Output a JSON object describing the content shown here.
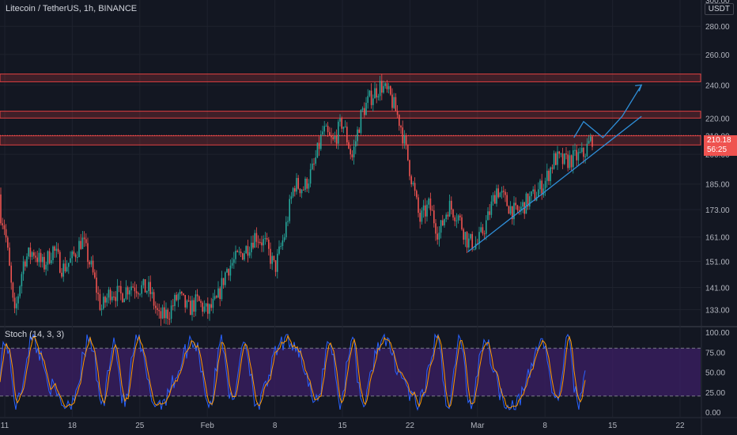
{
  "header": {
    "title": "Litecoin / TetherUS, 1h, BINANCE",
    "currency": "USDT"
  },
  "price_axis": {
    "labels": [
      "300.00",
      "280.00",
      "260.00",
      "240.00",
      "220.00",
      "210.00",
      "200.00",
      "185.00",
      "173.00",
      "161.00",
      "151.00",
      "141.00",
      "133.00"
    ]
  },
  "current_price": {
    "price": "210.18",
    "countdown": "56:25"
  },
  "stoch": {
    "label": "Stoch (14, 3, 3)",
    "labels": [
      "100.00",
      "75.00",
      "50.00",
      "25.00",
      "0.00"
    ],
    "upper_band": 80,
    "lower_band": 20
  },
  "time_axis": {
    "labels": [
      "11",
      "18",
      "25",
      "Feb",
      "8",
      "15",
      "22",
      "Mar",
      "8",
      "15",
      "22"
    ]
  },
  "colors": {
    "background": "#131722",
    "up": "#26a69a",
    "down": "#ef5350",
    "resistance": "#e04040",
    "trendline": "#2f8fd9",
    "stoch_k": "#2962ff",
    "stoch_d": "#ff9800",
    "stoch_band_fill": "#3c1f66"
  },
  "chart_data": {
    "type": "candlestick",
    "symbol": "Litecoin / TetherUS",
    "interval": "1h",
    "exchange": "BINANCE",
    "y_scale": "log",
    "ylim": [
      128,
      300
    ],
    "path": [
      [
        "2021-01-10",
        180
      ],
      [
        "2021-01-11",
        165
      ],
      [
        "2021-01-12",
        130
      ],
      [
        "2021-01-13",
        152
      ],
      [
        "2021-01-14",
        155
      ],
      [
        "2021-01-15",
        149
      ],
      [
        "2021-01-16",
        156
      ],
      [
        "2021-01-17",
        148
      ],
      [
        "2021-01-18",
        152
      ],
      [
        "2021-01-19",
        160
      ],
      [
        "2021-01-20",
        148
      ],
      [
        "2021-01-21",
        133
      ],
      [
        "2021-01-22",
        140
      ],
      [
        "2021-01-23",
        138
      ],
      [
        "2021-01-24",
        142
      ],
      [
        "2021-01-26",
        140
      ],
      [
        "2021-01-27",
        130
      ],
      [
        "2021-01-28",
        132
      ],
      [
        "2021-01-29",
        138
      ],
      [
        "2021-01-30",
        133
      ],
      [
        "2021-01-31",
        136
      ],
      [
        "2021-02-01",
        132
      ],
      [
        "2021-02-02",
        136
      ],
      [
        "2021-02-03",
        148
      ],
      [
        "2021-02-04",
        152
      ],
      [
        "2021-02-05",
        156
      ],
      [
        "2021-02-06",
        162
      ],
      [
        "2021-02-07",
        158
      ],
      [
        "2021-02-08",
        148
      ],
      [
        "2021-02-09",
        162
      ],
      [
        "2021-02-10",
        185
      ],
      [
        "2021-02-11",
        183
      ],
      [
        "2021-02-12",
        193
      ],
      [
        "2021-02-13",
        213
      ],
      [
        "2021-02-14",
        206
      ],
      [
        "2021-02-15",
        218
      ],
      [
        "2021-02-16",
        198
      ],
      [
        "2021-02-17",
        223
      ],
      [
        "2021-02-18",
        233
      ],
      [
        "2021-02-19",
        240
      ],
      [
        "2021-02-20",
        232
      ],
      [
        "2021-02-21",
        217
      ],
      [
        "2021-02-22",
        192
      ],
      [
        "2021-02-23",
        168
      ],
      [
        "2021-02-24",
        175
      ],
      [
        "2021-02-25",
        162
      ],
      [
        "2021-02-26",
        175
      ],
      [
        "2021-02-27",
        170
      ],
      [
        "2021-02-28",
        159
      ],
      [
        "2021-03-01",
        158
      ],
      [
        "2021-03-02",
        168
      ],
      [
        "2021-03-03",
        183
      ],
      [
        "2021-03-04",
        176
      ],
      [
        "2021-03-05",
        171
      ],
      [
        "2021-03-06",
        176
      ],
      [
        "2021-03-07",
        180
      ],
      [
        "2021-03-08",
        186
      ],
      [
        "2021-03-09",
        198
      ],
      [
        "2021-03-10",
        196
      ],
      [
        "2021-03-11",
        198
      ],
      [
        "2021-03-12",
        200
      ],
      [
        "2021-03-13",
        210
      ]
    ],
    "resistance_zones": [
      [
        242,
        247
      ],
      [
        220,
        224
      ],
      [
        205,
        210
      ]
    ],
    "trendlines": [
      {
        "from": [
          "2021-02-28",
          154.8
        ],
        "to": [
          "2021-03-18",
          221
        ]
      }
    ],
    "projection": {
      "points": [
        [
          "2021-03-11",
          209
        ],
        [
          "2021-03-12",
          218
        ],
        [
          "2021-03-14",
          209
        ],
        [
          "2021-03-16",
          221
        ],
        [
          "2021-03-18",
          240
        ]
      ]
    },
    "stoch_bands": [
      20,
      80
    ]
  }
}
